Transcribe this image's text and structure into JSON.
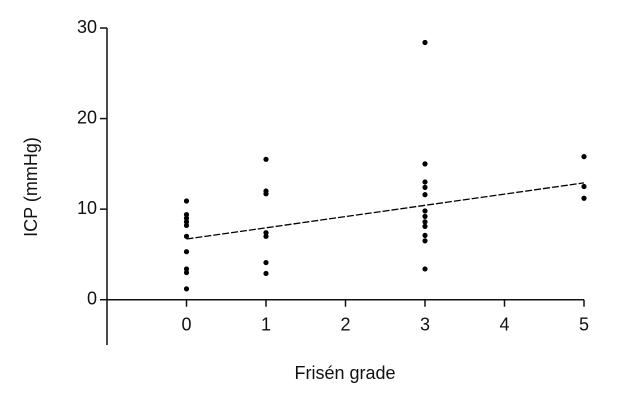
{
  "chart_data": {
    "type": "scatter",
    "xlabel": "Frisén grade",
    "ylabel": "ICP (mmHg)",
    "xlim": [
      -1,
      5
    ],
    "ylim": [
      -5,
      30
    ],
    "xticks": [
      0,
      1,
      2,
      3,
      4,
      5
    ],
    "yticks": [
      0,
      10,
      20,
      30
    ],
    "color": "#000000",
    "series": [
      {
        "x": [
          0,
          0,
          0,
          0,
          0,
          0,
          0,
          0,
          0,
          0,
          1,
          1,
          1,
          1,
          1,
          1,
          1,
          3,
          3,
          3,
          3,
          3,
          3,
          3,
          3,
          3,
          3,
          3,
          3,
          5,
          5,
          5
        ],
        "values": [
          10.9,
          9.4,
          9,
          8.6,
          8.2,
          7,
          5.3,
          3.4,
          3,
          1.2,
          15.5,
          12,
          11.7,
          7.4,
          7,
          4.1,
          2.9,
          28.4,
          15,
          13,
          12.4,
          11.6,
          9.8,
          9.2,
          8.6,
          8.1,
          7.1,
          6.5,
          3.4,
          15.8,
          12.5,
          11.2
        ]
      }
    ],
    "fit": {
      "x": [
        0,
        5
      ],
      "values": [
        6.7,
        12.9
      ]
    }
  }
}
